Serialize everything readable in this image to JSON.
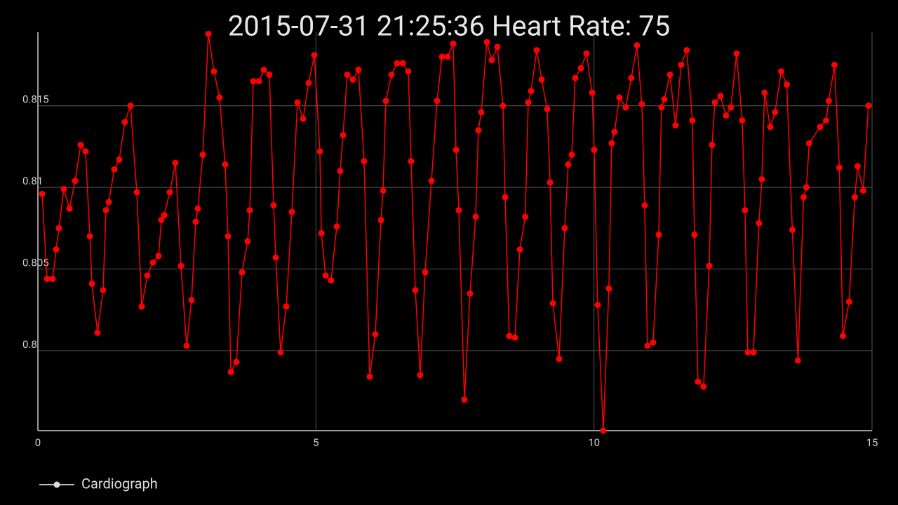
{
  "chart_data": {
    "type": "line",
    "title": "2015-07-31 21:25:36 Heart Rate: 75",
    "xlim": [
      0,
      15
    ],
    "xticks": [
      0,
      5,
      10,
      15
    ],
    "ylim": [
      0.7951,
      0.8195
    ],
    "yticks": [
      0.8,
      0.805,
      0.81,
      0.815
    ],
    "grid": true,
    "legend": "bottom-left",
    "x": [
      0.076,
      0.164,
      0.265,
      0.328,
      0.378,
      0.467,
      0.568,
      0.669,
      0.77,
      0.858,
      0.934,
      0.971,
      1.072,
      1.173,
      1.224,
      1.274,
      1.375,
      1.463,
      1.564,
      1.665,
      1.779,
      1.867,
      1.968,
      2.069,
      2.17,
      2.22,
      2.271,
      2.372,
      2.473,
      2.573,
      2.674,
      2.763,
      2.838,
      2.876,
      2.966,
      3.065,
      3.166,
      3.267,
      3.368,
      3.419,
      3.469,
      3.57,
      3.671,
      3.772,
      3.81,
      3.873,
      3.974,
      4.062,
      4.163,
      4.239,
      4.277,
      4.365,
      4.466,
      4.567,
      4.668,
      4.769,
      4.869,
      4.97,
      5.071,
      5.097,
      5.173,
      5.273,
      5.374,
      5.437,
      5.488,
      5.563,
      5.664,
      5.765,
      5.866,
      5.967,
      6.068,
      6.169,
      6.207,
      6.257,
      6.358,
      6.459,
      6.56,
      6.661,
      6.711,
      6.787,
      6.875,
      6.964,
      7.077,
      7.178,
      7.266,
      7.367,
      7.468,
      7.519,
      7.569,
      7.67,
      7.771,
      7.872,
      7.922,
      7.973,
      8.074,
      8.162,
      8.263,
      8.364,
      8.402,
      8.477,
      8.578,
      8.667,
      8.763,
      8.818,
      8.869,
      8.97,
      9.058,
      9.159,
      9.21,
      9.26,
      9.373,
      9.474,
      9.537,
      9.6,
      9.663,
      9.764,
      9.865,
      9.966,
      10.003,
      10.066,
      10.167,
      10.268,
      10.318,
      10.369,
      10.457,
      10.57,
      10.671,
      10.772,
      10.861,
      10.911,
      10.962,
      11.063,
      11.164,
      11.214,
      11.265,
      11.366,
      11.467,
      11.567,
      11.668,
      11.769,
      11.807,
      11.87,
      11.971,
      12.072,
      12.122,
      12.173,
      12.274,
      12.374,
      12.463,
      12.564,
      12.665,
      12.715,
      12.766,
      12.867,
      12.967,
      13.018,
      13.068,
      13.169,
      13.256,
      13.366,
      13.467,
      13.567,
      13.668,
      13.769,
      13.82,
      13.87,
      14.066,
      14.173,
      14.223,
      14.324,
      14.412,
      14.476,
      14.589,
      14.69,
      14.74,
      14.841,
      14.936
    ],
    "series": [
      {
        "name": "Cardiograph",
        "color": "#ff0000",
        "values": [
          0.8096,
          0.8044,
          0.8044,
          0.8062,
          0.8075,
          0.8099,
          0.8087,
          0.8104,
          0.8126,
          0.8122,
          0.807,
          0.8041,
          0.8011,
          0.8037,
          0.8086,
          0.8091,
          0.8111,
          0.8117,
          0.814,
          0.815,
          0.8097,
          0.8027,
          0.8046,
          0.8054,
          0.8058,
          0.808,
          0.8083,
          0.8097,
          0.8115,
          0.8052,
          0.8003,
          0.8031,
          0.8079,
          0.8087,
          0.812,
          0.8194,
          0.8171,
          0.8155,
          0.8114,
          0.807,
          0.7987,
          0.7993,
          0.8048,
          0.8067,
          0.8086,
          0.8165,
          0.8165,
          0.8172,
          0.8169,
          0.8089,
          0.8057,
          0.7999,
          0.8027,
          0.8085,
          0.8152,
          0.8142,
          0.8164,
          0.8181,
          0.8122,
          0.8072,
          0.8046,
          0.8043,
          0.8076,
          0.811,
          0.8132,
          0.8169,
          0.8166,
          0.8172,
          0.8116,
          0.7984,
          0.801,
          0.808,
          0.8098,
          0.8153,
          0.8169,
          0.8176,
          0.8176,
          0.8171,
          0.8116,
          0.8037,
          0.7985,
          0.8048,
          0.8104,
          0.8153,
          0.818,
          0.818,
          0.8188,
          0.8123,
          0.8086,
          0.797,
          0.8035,
          0.8082,
          0.8135,
          0.8146,
          0.8189,
          0.8178,
          0.8186,
          0.815,
          0.8094,
          0.8009,
          0.8008,
          0.8062,
          0.8082,
          0.8152,
          0.8159,
          0.8184,
          0.8166,
          0.8148,
          0.8103,
          0.8029,
          0.7995,
          0.8075,
          0.8114,
          0.812,
          0.8167,
          0.8173,
          0.8182,
          0.8158,
          0.8123,
          0.8028,
          0.7951,
          0.8038,
          0.8127,
          0.8134,
          0.8155,
          0.8149,
          0.8167,
          0.8187,
          0.8151,
          0.8089,
          0.8003,
          0.8005,
          0.8071,
          0.8149,
          0.8154,
          0.8169,
          0.8138,
          0.8175,
          0.8184,
          0.8141,
          0.8071,
          0.7981,
          0.7978,
          0.8052,
          0.8126,
          0.8152,
          0.8156,
          0.8144,
          0.8149,
          0.8182,
          0.8141,
          0.8086,
          0.7999,
          0.7999,
          0.8078,
          0.8105,
          0.8158,
          0.8137,
          0.8146,
          0.8171,
          0.8163,
          0.8074,
          0.7994,
          0.8094,
          0.81,
          0.8127,
          0.8137,
          0.8141,
          0.8153,
          0.8175,
          0.8112,
          0.8009,
          0.803,
          0.8094,
          0.8113,
          0.8098,
          0.815
        ]
      }
    ]
  }
}
